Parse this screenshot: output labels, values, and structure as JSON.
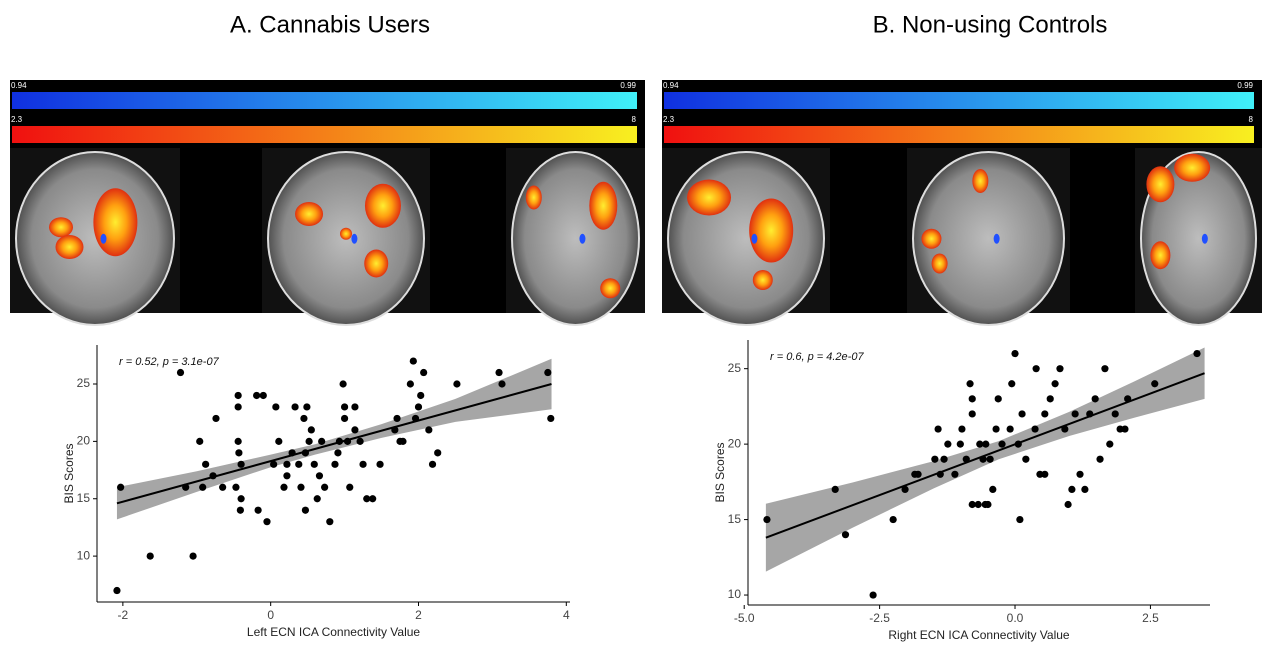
{
  "brain_panels": [
    {
      "colorbars": [
        {
          "min": 0.94,
          "max": 0.99
        },
        {
          "min": 2.3,
          "max": 8
        }
      ]
    },
    {
      "colorbars": [
        {
          "min": 0.94,
          "max": 0.99
        },
        {
          "min": 2.3,
          "max": 8
        }
      ]
    }
  ],
  "chart_data": [
    {
      "type": "scatter",
      "title": "A. Cannabis Users",
      "annotation": "r = 0.52, p = 3.1e-07",
      "x_label": "Left ECN ICA Connectivity Value",
      "y_label": "BIS Scores",
      "color": "#000000",
      "x": [
        -2.08,
        -2.03,
        -1.63,
        -1.22,
        -1.05,
        -1.15,
        -0.96,
        -0.88,
        -0.92,
        -0.74,
        -0.65,
        -0.78,
        -0.44,
        -0.47,
        -0.44,
        -0.44,
        -0.43,
        -0.4,
        -0.41,
        -0.4,
        -0.19,
        -0.1,
        -0.17,
        -0.05,
        0.04,
        0.07,
        0.11,
        0.18,
        0.22,
        0.22,
        0.29,
        0.33,
        0.38,
        0.45,
        0.47,
        0.47,
        0.41,
        0.49,
        0.52,
        0.55,
        0.59,
        0.63,
        0.66,
        0.69,
        0.73,
        0.8,
        0.87,
        0.91,
        0.93,
        0.98,
        1.0,
        1.0,
        1.04,
        1.07,
        1.14,
        1.14,
        1.21,
        1.25,
        1.3,
        1.38,
        1.48,
        1.68,
        1.71,
        1.75,
        1.79,
        1.89,
        1.93,
        1.96,
        2.0,
        2.03,
        2.07,
        2.14,
        2.19,
        2.26,
        2.52,
        3.09,
        3.13,
        3.75,
        3.79
      ],
      "values": [
        7,
        16,
        10,
        26,
        10,
        16,
        20,
        18,
        16,
        22,
        16,
        17,
        20,
        16,
        24,
        23,
        19,
        15,
        14,
        18,
        24,
        24,
        14,
        13,
        18,
        23,
        20,
        16,
        17,
        18,
        19,
        23,
        18,
        22,
        19,
        14,
        16,
        23,
        20,
        21,
        18,
        15,
        17,
        20,
        16,
        13,
        18,
        19,
        20,
        25,
        22,
        23,
        20,
        16,
        23,
        21,
        20,
        18,
        15,
        15,
        18,
        21,
        22,
        20,
        20,
        25,
        27,
        22,
        23,
        24,
        26,
        21,
        18,
        19,
        25,
        26,
        25,
        26,
        22
      ],
      "trend": {
        "x": [
          -2.08,
          3.8
        ],
        "values": [
          14.6,
          25.0
        ]
      },
      "band": {
        "x": [
          -2.08,
          -1,
          0,
          0.6,
          1.5,
          2.5,
          3.8
        ],
        "lower": [
          13.2,
          15.6,
          17.75,
          18.85,
          20.3,
          21.7,
          22.8
        ],
        "upper": [
          16.0,
          17.4,
          18.85,
          19.75,
          21.5,
          23.7,
          27.2
        ]
      },
      "xlim": [
        -2.35,
        4.05
      ],
      "ylim": [
        6,
        28.4
      ],
      "xticks": [
        -2,
        0,
        2,
        4
      ],
      "yticks": [
        10,
        15,
        20,
        25
      ]
    },
    {
      "type": "scatter",
      "title": "B. Non-using Controls",
      "annotation": "r = 0.6, p = 4.2e-07",
      "x_label": "Right ECN ICA Connectivity Value",
      "y_label": "BIS Scores",
      "color": "#000000",
      "x": [
        -4.58,
        -3.32,
        -3.13,
        -2.62,
        -2.25,
        -2.03,
        -1.85,
        -1.79,
        -1.48,
        -1.42,
        -1.38,
        -1.31,
        -1.24,
        -1.11,
        -1.01,
        -0.98,
        -0.9,
        -0.83,
        -0.79,
        -0.79,
        -0.79,
        -0.68,
        -0.65,
        -0.59,
        -0.55,
        -0.54,
        -0.5,
        -0.46,
        -0.41,
        -0.35,
        -0.31,
        -0.24,
        -0.09,
        -0.06,
        0.0,
        0.06,
        0.09,
        0.13,
        0.2,
        0.37,
        0.39,
        0.46,
        0.55,
        0.55,
        0.65,
        0.74,
        0.83,
        0.92,
        0.98,
        1.05,
        1.11,
        1.2,
        1.29,
        1.38,
        1.48,
        1.57,
        1.66,
        1.75,
        1.85,
        1.94,
        2.03,
        2.08,
        2.58,
        3.36
      ],
      "values": [
        15,
        17,
        14,
        10,
        15,
        17,
        18,
        18,
        19,
        21,
        18,
        19,
        20,
        18,
        20,
        21,
        19,
        24,
        23,
        22,
        16,
        16,
        20,
        19,
        16,
        20,
        16,
        19,
        17,
        21,
        23,
        20,
        21,
        24,
        26,
        20,
        15,
        22,
        19,
        21,
        25,
        18,
        22,
        18,
        23,
        24,
        25,
        21,
        16,
        17,
        22,
        18,
        17,
        22,
        23,
        19,
        25,
        20,
        22,
        21,
        21,
        23,
        24,
        26
      ],
      "trend": {
        "x": [
          -4.6,
          3.5
        ],
        "values": [
          13.8,
          24.7
        ]
      },
      "band": {
        "x": [
          -4.6,
          -3,
          -1.5,
          -0.3,
          1,
          2.2,
          3.5
        ],
        "lower": [
          11.55,
          14.46,
          17.07,
          19.0,
          20.54,
          21.75,
          23.0
        ],
        "upper": [
          16.05,
          17.46,
          18.87,
          20.2,
          22.14,
          24.15,
          26.4
        ]
      },
      "xlim": [
        -4.93,
        3.6
      ],
      "ylim": [
        9.34,
        26.9
      ],
      "xticks": [
        {
          "value": -5,
          "label": "-5.0"
        },
        -2.5,
        {
          "value": 0,
          "label": "0.0"
        },
        2.5
      ],
      "yticks": [
        10,
        15,
        20,
        25
      ]
    }
  ]
}
